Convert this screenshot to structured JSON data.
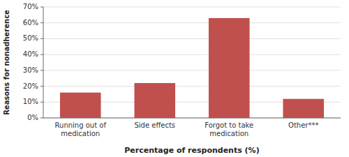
{
  "chart_data": {
    "type": "bar",
    "categories": [
      "Running out of\nmedication",
      "Side effects",
      "Forgot to take\nmedication",
      "Other***"
    ],
    "values": [
      16,
      22,
      63,
      12
    ],
    "color": "#c0504d",
    "ylim": [
      0,
      70
    ],
    "yticks": [
      {
        "value": 0,
        "label": "0%"
      },
      {
        "value": 10,
        "label": "10%"
      },
      {
        "value": 20,
        "label": "20%"
      },
      {
        "value": 30,
        "label": "30%"
      },
      {
        "value": 40,
        "label": "40%"
      },
      {
        "value": 50,
        "label": "50%"
      },
      {
        "value": 60,
        "label": "60%"
      },
      {
        "value": 70,
        "label": "70%"
      }
    ],
    "ylabel": "Reasons for nonadherence",
    "xlabel": "Percentage of respondents (%)",
    "grid": true
  }
}
